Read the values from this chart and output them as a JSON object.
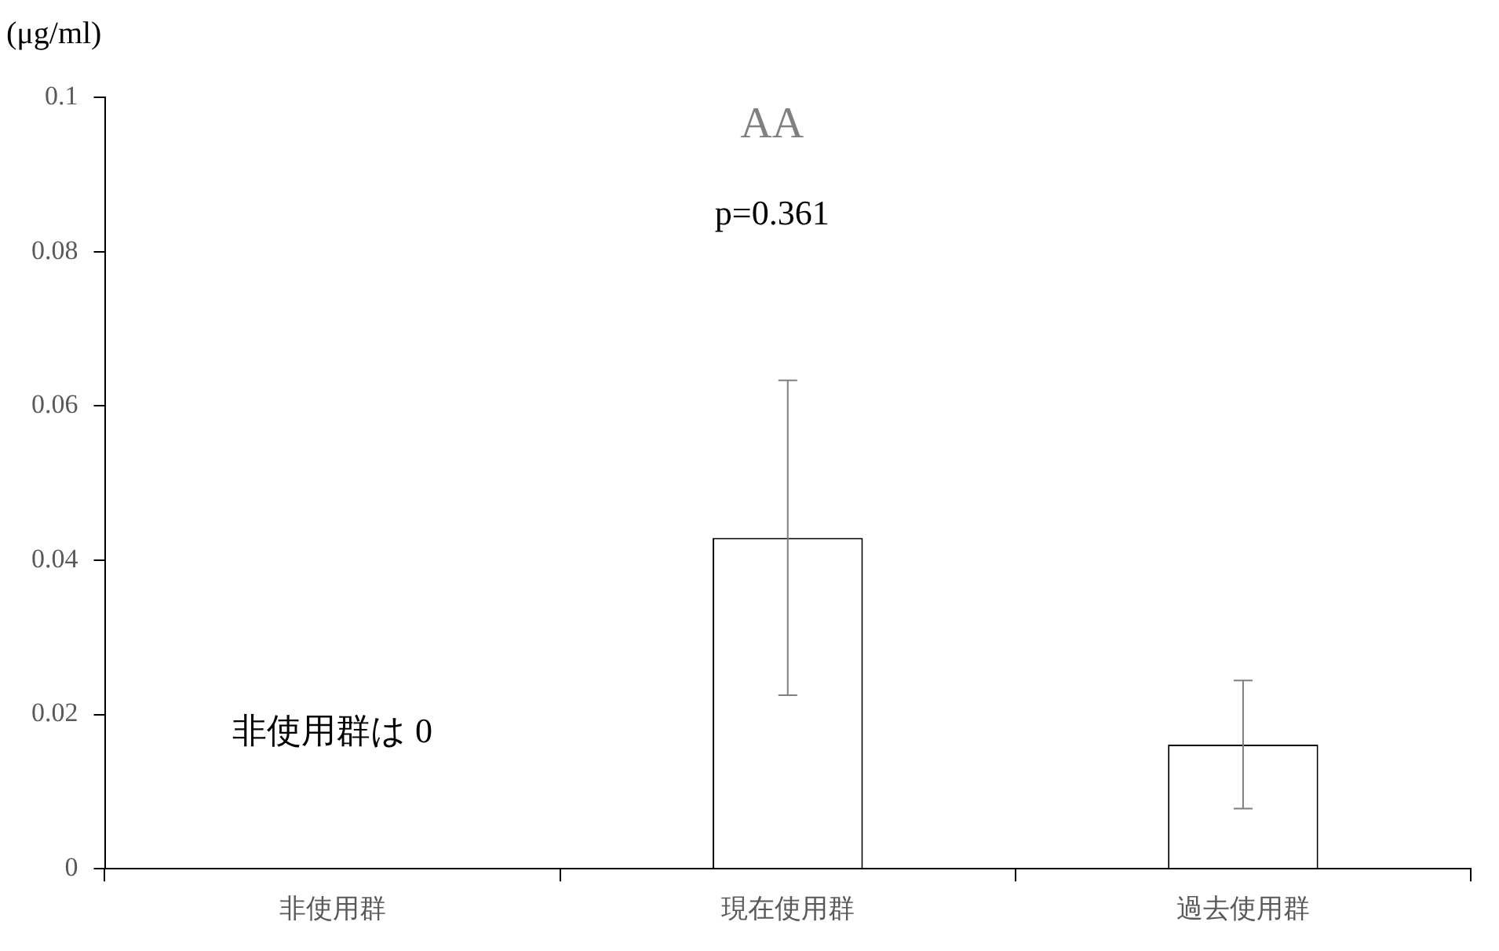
{
  "chart_data": {
    "type": "bar",
    "title": "AA",
    "ylabel": "(μg/ml)",
    "categories": [
      "非使用群",
      "現在使用群",
      "過去使用群"
    ],
    "values": [
      0,
      0.0429,
      0.0161
    ],
    "errors": [
      null,
      0.0204,
      0.0083
    ],
    "color": "#ffffff",
    "ylim": [
      0,
      0.1
    ],
    "yticks": [
      0,
      0.02,
      0.04,
      0.06,
      0.08,
      0.1
    ],
    "grid": false,
    "legend": false,
    "annotations": [
      "p=0.361",
      "非使用群は 0"
    ]
  }
}
